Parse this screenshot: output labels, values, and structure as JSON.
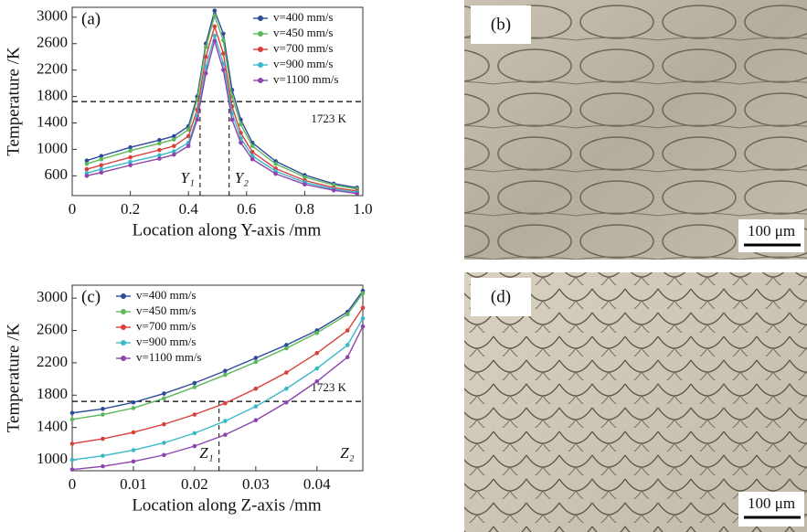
{
  "chart_data": [
    {
      "type": "line",
      "panel": "(a)",
      "xlabel": "Location along Y-axis /mm",
      "ylabel": "Temperature /K",
      "xlim": [
        0,
        1
      ],
      "xticks": [
        0,
        0.2,
        0.4,
        0.6,
        0.8,
        {
          "value": 1,
          "label": "1.0"
        }
      ],
      "ylim": [
        300,
        3150
      ],
      "yticks": [
        600,
        1000,
        1400,
        1800,
        2200,
        2600,
        3000
      ],
      "legend": "upper right",
      "threshold": {
        "value": 1723,
        "label": "1723 K"
      },
      "annotations": [
        {
          "x": 0.44,
          "label": "Y₁",
          "line": true
        },
        {
          "x": 0.54,
          "label": "Y₂",
          "line": true
        }
      ],
      "x": [
        0.05,
        0.1,
        0.2,
        0.3,
        0.35,
        0.4,
        0.43,
        0.46,
        0.49,
        0.52,
        0.55,
        0.58,
        0.62,
        0.7,
        0.8,
        0.9,
        0.98
      ],
      "series": [
        {
          "name": "v=400 mm/s",
          "color": "#2e4a9a",
          "values": [
            830,
            900,
            1030,
            1140,
            1200,
            1350,
            1800,
            2600,
            3100,
            2750,
            1900,
            1450,
            1100,
            820,
            610,
            480,
            420
          ]
        },
        {
          "name": "v=450 mm/s",
          "color": "#5cb85c",
          "values": [
            780,
            850,
            980,
            1090,
            1150,
            1300,
            1750,
            2550,
            3020,
            2650,
            1800,
            1380,
            1050,
            780,
            580,
            460,
            400
          ]
        },
        {
          "name": "v=700 mm/s",
          "color": "#d9403a",
          "values": [
            700,
            760,
            880,
            990,
            1050,
            1200,
            1600,
            2400,
            2860,
            2450,
            1650,
            1250,
            960,
            710,
            530,
            420,
            370
          ]
        },
        {
          "name": "v=900 mm/s",
          "color": "#3ab8c8",
          "values": [
            640,
            700,
            810,
            910,
            970,
            1100,
            1500,
            2250,
            2720,
            2300,
            1550,
            1170,
            900,
            670,
            500,
            400,
            350
          ]
        },
        {
          "name": "v=1100 mm/s",
          "color": "#8e44ad",
          "values": [
            600,
            650,
            760,
            860,
            920,
            1050,
            1450,
            2150,
            2640,
            2200,
            1450,
            1100,
            850,
            630,
            470,
            380,
            330
          ]
        }
      ]
    },
    {
      "type": "line",
      "panel": "(c)",
      "xlabel": "Location along Z-axis /mm",
      "ylabel": "Temperature /K",
      "xlim": [
        0,
        0.0475
      ],
      "xticks": [
        0,
        0.01,
        0.02,
        0.03,
        0.04
      ],
      "ylim": [
        865,
        3160
      ],
      "yticks": [
        1000,
        1400,
        1800,
        2200,
        2600,
        3000
      ],
      "legend": "upper left",
      "threshold": {
        "value": 1723,
        "label": "1723 K"
      },
      "annotations": [
        {
          "x": 0.024,
          "label": "Z₁",
          "line": true
        },
        {
          "x": 0.047,
          "label": "Z₂",
          "line": false
        }
      ],
      "x": [
        0,
        0.005,
        0.01,
        0.015,
        0.02,
        0.025,
        0.03,
        0.035,
        0.04,
        0.045,
        0.0475
      ],
      "series": [
        {
          "name": "v=400 mm/s",
          "color": "#2e4a9a",
          "values": [
            1580,
            1630,
            1710,
            1820,
            1950,
            2100,
            2260,
            2420,
            2600,
            2830,
            3090
          ]
        },
        {
          "name": "v=450 mm/s",
          "color": "#5cb85c",
          "values": [
            1500,
            1560,
            1640,
            1760,
            1900,
            2050,
            2210,
            2380,
            2570,
            2800,
            3060
          ]
        },
        {
          "name": "v=700 mm/s",
          "color": "#d9403a",
          "values": [
            1200,
            1260,
            1340,
            1440,
            1560,
            1700,
            1880,
            2080,
            2320,
            2600,
            2880
          ]
        },
        {
          "name": "v=900 mm/s",
          "color": "#3ab8c8",
          "values": [
            1000,
            1050,
            1120,
            1210,
            1330,
            1480,
            1660,
            1880,
            2130,
            2420,
            2750
          ]
        },
        {
          "name": "v=1100 mm/s",
          "color": "#8e44ad",
          "values": [
            880,
            920,
            980,
            1060,
            1170,
            1310,
            1490,
            1710,
            1970,
            2270,
            2650
          ]
        }
      ]
    }
  ],
  "images": [
    {
      "label": "(b)",
      "scale_bar": "100 μm"
    },
    {
      "label": "(d)",
      "scale_bar": "100 μm"
    }
  ]
}
